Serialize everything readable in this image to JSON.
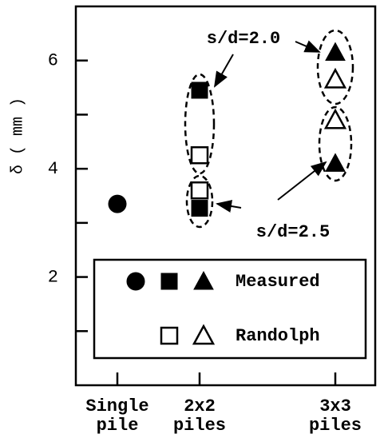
{
  "chart_data": {
    "type": "scatter",
    "y_label": "δ ( mm )",
    "categories": [
      [
        "Single",
        "pile"
      ],
      [
        "2x2",
        "piles"
      ],
      [
        "3x3",
        "piles"
      ]
    ],
    "markers": [
      "circle",
      "square",
      "triangle"
    ],
    "ylim": [
      0,
      7
    ],
    "yticks": [
      2,
      4,
      6
    ],
    "yminor_ticks": [
      1,
      3,
      5
    ],
    "annotations": [
      "s/d=2.0",
      "s/d=2.5"
    ],
    "series": [
      {
        "name": "Measured",
        "color": "#000000",
        "filled": true,
        "values": [
          3.35,
          5.45,
          6.15
        ],
        "values_sd25": [
          null,
          3.27,
          4.1
        ]
      },
      {
        "name": "Randolph",
        "color": "#000000",
        "filled": false,
        "values": [
          null,
          4.25,
          5.65
        ],
        "values_sd25": [
          null,
          3.6,
          4.9
        ]
      }
    ]
  }
}
